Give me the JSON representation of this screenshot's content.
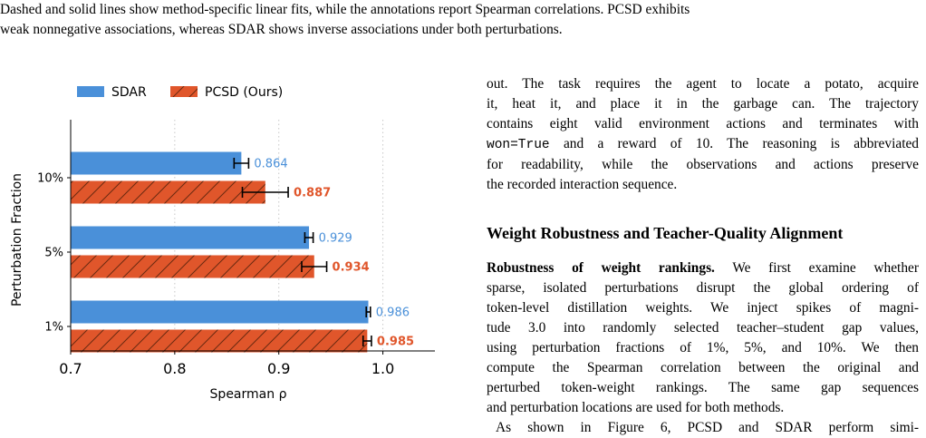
{
  "caption_tail": {
    "line1": "Dashed and solid lines show method-specific linear fits, while the annotations report Spearman correlations. PCSD exhibits",
    "line2": "weak nonnegative associations, whereas SDAR shows inverse associations under both perturbations."
  },
  "chart_data": {
    "type": "bar",
    "orientation": "horizontal",
    "categories": [
      "10%",
      "5%",
      "1%"
    ],
    "series": [
      {
        "name": "SDAR",
        "values": [
          0.864,
          0.929,
          0.986
        ],
        "error": [
          0.007,
          0.004,
          0.002
        ],
        "color": "#4a90d9",
        "hatch": false,
        "label_bold": false
      },
      {
        "name": "PCSD (Ours)",
        "values": [
          0.887,
          0.934,
          0.985
        ],
        "error": [
          0.022,
          0.012,
          0.004
        ],
        "color": "#e0562b",
        "hatch": true,
        "label_bold": true
      }
    ],
    "value_labels": [
      [
        "0.864",
        "0.887"
      ],
      [
        "0.929",
        "0.934"
      ],
      [
        "0.986",
        "0.985"
      ]
    ],
    "xlabel": "Spearman  ρ",
    "ylabel": "Perturbation Fraction",
    "xlim": [
      0.7,
      1.05
    ],
    "xticks": [
      "0.7",
      "0.8",
      "0.9",
      "1.0"
    ],
    "xtick_values": [
      0.7,
      0.8,
      0.9,
      1.0
    ],
    "grid": "x dotted",
    "legend_placement": "top"
  },
  "right_column": {
    "intro_lines": [
      "out. The task requires the agent to locate a potato, acquire",
      "it, heat it, and place it in the garbage can. The trajectory",
      "contains eight valid environment actions and terminates with"
    ],
    "code_text": "won=True",
    "code_line_rest": " and a reward of 10. The reasoning is abbreviated",
    "intro_lines_after": [
      "for readability, while the observations and actions preserve",
      "the recorded interaction sequence."
    ],
    "section_title": "Weight Robustness and Teacher-Quality Alignment",
    "para_heading": "Robustness of weight rankings.",
    "para_first_rest": "  We first examine whether",
    "para_lines": [
      "sparse, isolated perturbations disrupt the global ordering of",
      "token-level distillation weights. We inject spikes of magni-",
      "tude 3.0 into randomly selected teacher–student gap values,",
      "using perturbation fractions of 1%, 5%, and 10%. We then",
      "compute the Spearman correlation between the original and",
      "perturbed token-weight rankings. The same gap sequences",
      "and perturbation locations are used for both methods."
    ],
    "next_para_line": "As shown in Figure 6, PCSD and SDAR perform simi-"
  }
}
